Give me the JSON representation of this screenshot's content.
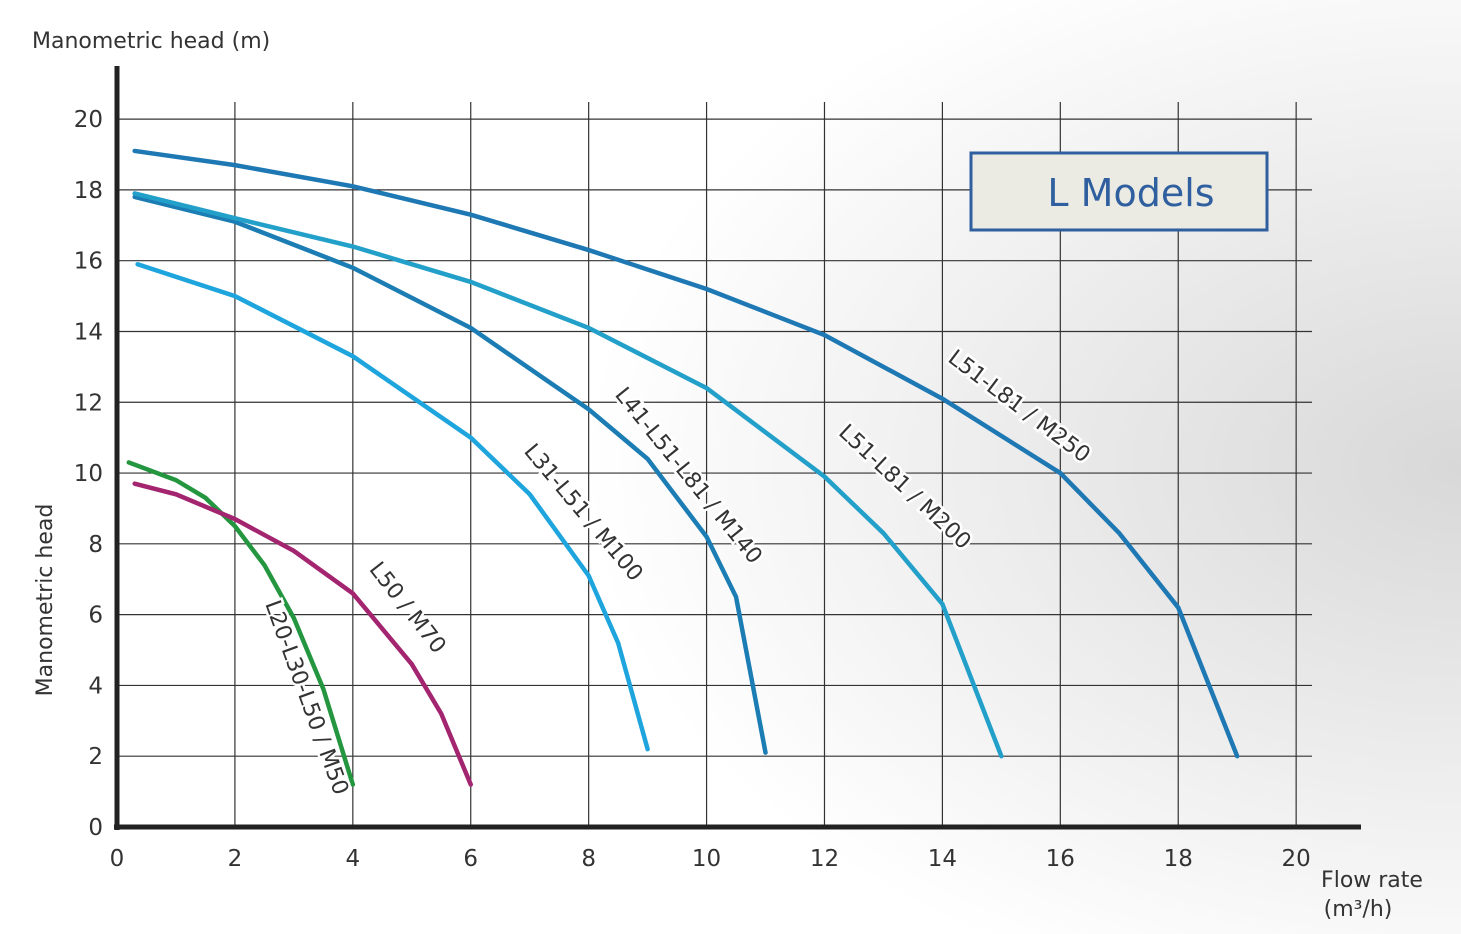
{
  "chart_data": {
    "type": "line",
    "title": "L Models",
    "y_axis_title": "Manometric head (m)",
    "y_axis_label": "Manometric head",
    "x_axis_label": "Flow rate",
    "x_axis_unit": "(m³/h)",
    "xlim": [
      0,
      21.1
    ],
    "ylim": [
      0,
      21.5
    ],
    "xticks": [
      0,
      2,
      4,
      6,
      8,
      10,
      12,
      14,
      16,
      18,
      20
    ],
    "yticks": [
      0,
      2,
      4,
      6,
      8,
      10,
      12,
      14,
      16,
      18,
      20
    ],
    "grid": true,
    "series": [
      {
        "name": "L20-L30-L50 / M50",
        "color": "#23963f",
        "x": [
          0.2,
          1,
          1.5,
          2,
          2.5,
          3,
          3.5,
          4
        ],
        "values": [
          10.3,
          9.8,
          9.3,
          8.5,
          7.4,
          5.9,
          3.9,
          1.2
        ]
      },
      {
        "name": "L50 / M70",
        "color": "#a3246f",
        "x": [
          0.3,
          1,
          2,
          3,
          4,
          5,
          5.5,
          6
        ],
        "values": [
          9.7,
          9.4,
          8.7,
          7.8,
          6.6,
          4.6,
          3.2,
          1.2
        ]
      },
      {
        "name": "L31-L51 / M100",
        "color": "#1fa5dd",
        "x": [
          0.35,
          2,
          4,
          6,
          7,
          8,
          8.5,
          9
        ],
        "values": [
          15.9,
          15.0,
          13.3,
          11.0,
          9.4,
          7.1,
          5.2,
          2.2
        ]
      },
      {
        "name": "L41-L51-L81 / M140",
        "color": "#1b7db3",
        "x": [
          0.3,
          2,
          4,
          6,
          8,
          9,
          10,
          10.5,
          11
        ],
        "values": [
          17.8,
          17.1,
          15.8,
          14.1,
          11.8,
          10.4,
          8.2,
          6.5,
          2.1
        ]
      },
      {
        "name": "L51-L81 / M200",
        "color": "#23a0c9",
        "x": [
          0.3,
          2,
          4,
          6,
          8,
          10,
          12,
          13,
          14,
          15
        ],
        "values": [
          17.9,
          17.2,
          16.4,
          15.4,
          14.1,
          12.4,
          9.9,
          8.3,
          6.3,
          2.0
        ]
      },
      {
        "name": "L51-L81 / M250",
        "color": "#1e78b4",
        "x": [
          0.3,
          2,
          4,
          6,
          8,
          10,
          12,
          14,
          16,
          17,
          18,
          19
        ],
        "values": [
          19.1,
          18.7,
          18.1,
          17.3,
          16.3,
          15.2,
          13.9,
          12.1,
          10.0,
          8.3,
          6.2,
          2.0
        ]
      }
    ]
  }
}
